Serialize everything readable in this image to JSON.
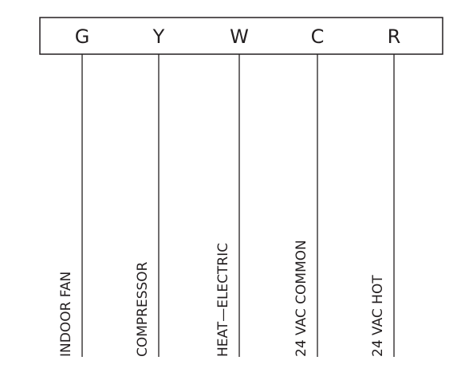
{
  "terminals": [
    {
      "letter": "G",
      "label": "INDOOR FAN"
    },
    {
      "letter": "Y",
      "label": "COMPRESSOR"
    },
    {
      "letter": "W",
      "label": "HEAT—ELECTRIC"
    },
    {
      "letter": "C",
      "label": "24 VAC COMMON"
    },
    {
      "letter": "R",
      "label": "24 VAC HOT"
    }
  ]
}
